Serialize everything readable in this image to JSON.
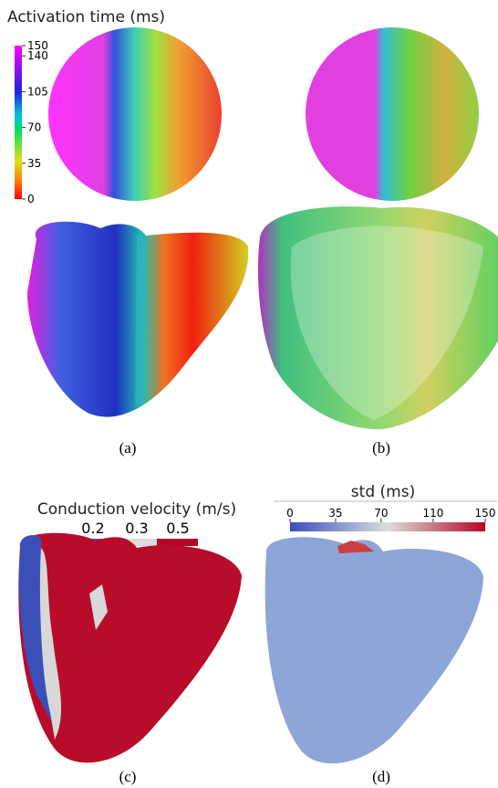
{
  "panels": [
    {
      "label": "(a)",
      "title": "Activation time (ms)",
      "colorbar_ticks": [
        150,
        140,
        105,
        70,
        35,
        0
      ]
    },
    {
      "label": "(b)"
    },
    {
      "label": "(c)",
      "title": "Conduction velocity (m/s)",
      "legend": [
        "0.2",
        "0.3",
        "0.5"
      ]
    },
    {
      "label": "(d)",
      "title": "std (ms)",
      "colorbar_ticks": [
        0,
        35,
        70,
        110,
        150
      ]
    }
  ]
}
